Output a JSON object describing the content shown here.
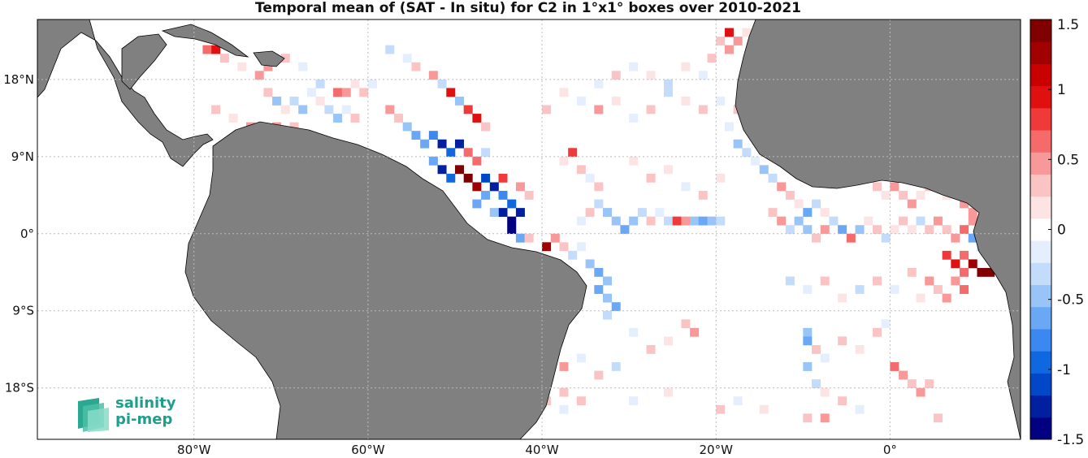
{
  "title": "Temporal mean of (SAT - In situ) for C2 in 1°x1° boxes over 2010-2021",
  "logo": {
    "line1": "salinity",
    "line2": "pi-mep",
    "color": "#1f9e8c"
  },
  "map": {
    "lon_range": [
      -98,
      15
    ],
    "lat_range": [
      -24,
      25
    ],
    "land_color": "#808080",
    "ocean_color": "#ffffff",
    "lon_ticks": [
      {
        "value": -80,
        "label": "80°W"
      },
      {
        "value": -60,
        "label": "60°W"
      },
      {
        "value": -40,
        "label": "40°W"
      },
      {
        "value": -20,
        "label": "20°W"
      },
      {
        "value": 0,
        "label": "0°"
      }
    ],
    "lat_ticks": [
      {
        "value": 18,
        "label": "18°N"
      },
      {
        "value": 9,
        "label": "9°N"
      },
      {
        "value": 0,
        "label": "0°"
      },
      {
        "value": -9,
        "label": "9°S"
      },
      {
        "value": -18,
        "label": "18°S"
      }
    ]
  },
  "colorbar": {
    "range": [
      -1.5,
      1.5
    ],
    "ticks": [
      {
        "value": 1.5,
        "label": "1.5"
      },
      {
        "value": 1,
        "label": "1"
      },
      {
        "value": 0.5,
        "label": "0.5"
      },
      {
        "value": 0,
        "label": "0"
      },
      {
        "value": -0.5,
        "label": "-0.5"
      },
      {
        "value": -1,
        "label": "-1"
      },
      {
        "value": -1.5,
        "label": "-1.5"
      }
    ],
    "colors": [
      "#000080",
      "#0020a0",
      "#0048c8",
      "#1068e0",
      "#3a88f0",
      "#6aa8f5",
      "#98c4f8",
      "#c4dcfb",
      "#e4eefd",
      "#ffffff",
      "#fde4e4",
      "#fbc4c4",
      "#f89898",
      "#f56a6a",
      "#f03a3a",
      "#e01010",
      "#c80000",
      "#a00000",
      "#800000"
    ]
  },
  "chart_data": {
    "type": "heatmap",
    "units": "°",
    "cells": [
      [
        -79,
        21,
        0.6
      ],
      [
        -78,
        21,
        0.9
      ],
      [
        -77,
        20,
        0.3
      ],
      [
        -75,
        19,
        0.2
      ],
      [
        -73,
        18,
        0.4
      ],
      [
        -72,
        19,
        0.5
      ],
      [
        -70,
        20,
        0.3
      ],
      [
        -68,
        19,
        -0.2
      ],
      [
        -66,
        17,
        -0.3
      ],
      [
        -64,
        16,
        0.6
      ],
      [
        -63,
        16,
        0.4
      ],
      [
        -62,
        17,
        0.2
      ],
      [
        -61,
        16,
        0.3
      ],
      [
        -60,
        17,
        -0.2
      ],
      [
        -72,
        16,
        0.3
      ],
      [
        -71,
        15,
        -0.4
      ],
      [
        -70,
        14,
        0.2
      ],
      [
        -69,
        15,
        -0.3
      ],
      [
        -68,
        14,
        -0.5
      ],
      [
        -67,
        16,
        -0.2
      ],
      [
        -66,
        15,
        0.2
      ],
      [
        -65,
        14,
        -0.3
      ],
      [
        -64,
        13,
        -0.4
      ],
      [
        -63,
        14,
        -0.2
      ],
      [
        -62,
        13,
        0.3
      ],
      [
        -78,
        14,
        0.3
      ],
      [
        -76,
        13,
        0.2
      ],
      [
        -74,
        12,
        0.4
      ],
      [
        -73,
        11,
        -0.3
      ],
      [
        -71,
        12,
        0.5
      ],
      [
        -70,
        11,
        -0.2
      ],
      [
        -69,
        12,
        0.3
      ],
      [
        -58,
        21,
        -0.3
      ],
      [
        -56,
        20,
        -0.2
      ],
      [
        -55,
        19,
        0.3
      ],
      [
        -53,
        18,
        0.4
      ],
      [
        -52,
        17,
        -0.3
      ],
      [
        -51,
        16,
        0.9
      ],
      [
        -50,
        15,
        -0.5
      ],
      [
        -49,
        14,
        0.8
      ],
      [
        -48,
        13,
        1.0
      ],
      [
        -47,
        12,
        0.3
      ],
      [
        -58,
        14,
        0.4
      ],
      [
        -57,
        13,
        0.3
      ],
      [
        -56,
        12,
        -0.4
      ],
      [
        -55,
        11,
        -0.6
      ],
      [
        -54,
        10,
        -0.7
      ],
      [
        -53,
        11,
        -0.8
      ],
      [
        -52,
        10,
        -1.3
      ],
      [
        -51,
        9,
        -0.9
      ],
      [
        -50,
        10,
        -1.2
      ],
      [
        -49,
        9,
        0.6
      ],
      [
        -48,
        8,
        0.7
      ],
      [
        -47,
        9,
        -0.3
      ],
      [
        -53,
        8,
        -0.6
      ],
      [
        -52,
        7,
        -1.2
      ],
      [
        -51,
        6,
        -1.0
      ],
      [
        -50,
        7,
        1.4
      ],
      [
        -49,
        6,
        1.5
      ],
      [
        -48,
        5,
        1.3
      ],
      [
        -47,
        6,
        -1.1
      ],
      [
        -46,
        5,
        -1.2
      ],
      [
        -45,
        4,
        -0.8
      ],
      [
        -44,
        3,
        -0.9
      ],
      [
        -45,
        2,
        -1.3
      ],
      [
        -44,
        1,
        -1.4
      ],
      [
        -43,
        2,
        -1.2
      ],
      [
        -44,
        0,
        -1.5
      ],
      [
        -43,
        -1,
        -0.6
      ],
      [
        -42,
        -1,
        0.3
      ],
      [
        -48,
        3,
        -0.6
      ],
      [
        -47,
        4,
        -0.7
      ],
      [
        -46,
        2,
        -0.5
      ],
      [
        -45,
        6,
        0.8
      ],
      [
        -43,
        5,
        0.4
      ],
      [
        -42,
        4,
        0.3
      ],
      [
        -40,
        -2,
        1.2
      ],
      [
        -39,
        -1,
        0.4
      ],
      [
        -38,
        -2,
        0.3
      ],
      [
        -37,
        -3,
        -0.3
      ],
      [
        -36,
        -2,
        -0.2
      ],
      [
        -35,
        -4,
        -0.4
      ],
      [
        -34,
        -5,
        -0.6
      ],
      [
        -33,
        -6,
        -0.5
      ],
      [
        -34,
        -7,
        -0.7
      ],
      [
        -33,
        -8,
        -0.4
      ],
      [
        -32,
        -9,
        -0.6
      ],
      [
        -33,
        -10,
        -0.3
      ],
      [
        -36,
        1,
        -0.2
      ],
      [
        -35,
        2,
        0.3
      ],
      [
        -34,
        3,
        -0.3
      ],
      [
        -33,
        2,
        -0.4
      ],
      [
        -32,
        1,
        -0.5
      ],
      [
        -31,
        0,
        -0.6
      ],
      [
        -30,
        1,
        -0.4
      ],
      [
        -29,
        2,
        -0.3
      ],
      [
        -28,
        1,
        0.3
      ],
      [
        -27,
        2,
        -0.2
      ],
      [
        -26,
        1,
        -0.3
      ],
      [
        -25,
        1,
        0.8
      ],
      [
        -24,
        1,
        0.5
      ],
      [
        -23,
        1,
        -0.4
      ],
      [
        -22,
        1,
        -0.6
      ],
      [
        -21,
        1,
        -0.5
      ],
      [
        -20,
        1,
        -0.3
      ],
      [
        -38,
        8,
        0.2
      ],
      [
        -37,
        9,
        0.8
      ],
      [
        -36,
        7,
        0.3
      ],
      [
        -35,
        6,
        -0.2
      ],
      [
        -34,
        5,
        0.3
      ],
      [
        -30,
        8,
        0.2
      ],
      [
        -28,
        6,
        0.3
      ],
      [
        -26,
        7,
        0.2
      ],
      [
        -24,
        5,
        -0.2
      ],
      [
        -22,
        4,
        0.3
      ],
      [
        -20,
        6,
        0.2
      ],
      [
        -40,
        14,
        0.3
      ],
      [
        -38,
        16,
        0.2
      ],
      [
        -36,
        15,
        -0.2
      ],
      [
        -34,
        14,
        0.4
      ],
      [
        -32,
        15,
        0.2
      ],
      [
        -30,
        13,
        -0.2
      ],
      [
        -28,
        14,
        0.3
      ],
      [
        -26,
        16,
        -0.3
      ],
      [
        -24,
        15,
        0.2
      ],
      [
        -22,
        14,
        0.3
      ],
      [
        -20,
        15,
        -0.2
      ],
      [
        -18,
        14,
        0.3
      ],
      [
        -16,
        13,
        -0.3
      ],
      [
        -20,
        22,
        0.3
      ],
      [
        -19,
        23,
        1.0
      ],
      [
        -18,
        22,
        0.4
      ],
      [
        -17,
        23,
        0.2
      ],
      [
        -19,
        21,
        0.5
      ],
      [
        -21,
        20,
        0.3
      ],
      [
        -22,
        18,
        -0.2
      ],
      [
        -24,
        19,
        0.2
      ],
      [
        -26,
        17,
        -0.3
      ],
      [
        -28,
        18,
        0.2
      ],
      [
        -30,
        19,
        -0.2
      ],
      [
        -32,
        18,
        0.3
      ],
      [
        -34,
        17,
        -0.2
      ],
      [
        -19,
        12,
        -0.2
      ],
      [
        -18,
        10,
        -0.4
      ],
      [
        -17,
        9,
        -0.3
      ],
      [
        -16,
        8,
        -0.2
      ],
      [
        -15,
        7,
        -0.5
      ],
      [
        -14,
        6,
        -0.3
      ],
      [
        -13,
        5,
        0.4
      ],
      [
        -12,
        4,
        0.3
      ],
      [
        -11,
        3,
        0.2
      ],
      [
        -10,
        2,
        -0.7
      ],
      [
        -9,
        3,
        -0.3
      ],
      [
        -8,
        2,
        0.2
      ],
      [
        -14,
        2,
        0.3
      ],
      [
        -13,
        1,
        0.4
      ],
      [
        -12,
        0,
        -0.3
      ],
      [
        -11,
        1,
        -0.4
      ],
      [
        -10,
        0,
        -0.5
      ],
      [
        -9,
        -1,
        0.3
      ],
      [
        -8,
        0,
        0.4
      ],
      [
        -7,
        1,
        -0.3
      ],
      [
        -6,
        0,
        -0.6
      ],
      [
        -5,
        -1,
        0.7
      ],
      [
        -4,
        0,
        -0.4
      ],
      [
        -3,
        1,
        0.2
      ],
      [
        -2,
        0,
        0.3
      ],
      [
        -1,
        -1,
        -0.3
      ],
      [
        0,
        0,
        0.2
      ],
      [
        1,
        1,
        0.3
      ],
      [
        2,
        0,
        0.2
      ],
      [
        3,
        1,
        -0.3
      ],
      [
        4,
        0,
        0.3
      ],
      [
        5,
        1,
        0.4
      ],
      [
        6,
        0,
        0.3
      ],
      [
        7,
        -1,
        0.5
      ],
      [
        8,
        0,
        0.6
      ],
      [
        9,
        1,
        0.4
      ],
      [
        10,
        0,
        0.7
      ],
      [
        9,
        -1,
        -0.6
      ],
      [
        10,
        -2,
        -0.4
      ],
      [
        -2,
        5,
        0.3
      ],
      [
        -1,
        4,
        0.2
      ],
      [
        0,
        5,
        0.5
      ],
      [
        1,
        4,
        0.3
      ],
      [
        2,
        3,
        0.4
      ],
      [
        3,
        4,
        0.2
      ],
      [
        4,
        5,
        0.3
      ],
      [
        6,
        4,
        0.2
      ],
      [
        8,
        3,
        0.4
      ],
      [
        9,
        2,
        0.5
      ],
      [
        6,
        -3,
        0.8
      ],
      [
        7,
        -4,
        0.9
      ],
      [
        8,
        -3,
        0.6
      ],
      [
        9,
        -4,
        1.3
      ],
      [
        10,
        -5,
        1.4
      ],
      [
        11,
        -5,
        1.5
      ],
      [
        8,
        -5,
        0.7
      ],
      [
        7,
        -6,
        0.5
      ],
      [
        8,
        -7,
        0.6
      ],
      [
        6,
        -8,
        0.4
      ],
      [
        5,
        -7,
        0.3
      ],
      [
        4,
        -6,
        0.4
      ],
      [
        -12,
        -6,
        -0.3
      ],
      [
        -10,
        -7,
        -0.2
      ],
      [
        -8,
        -6,
        0.3
      ],
      [
        -6,
        -8,
        0.2
      ],
      [
        -4,
        -7,
        -0.3
      ],
      [
        -2,
        -6,
        0.3
      ],
      [
        0,
        -7,
        -0.2
      ],
      [
        2,
        -5,
        0.3
      ],
      [
        3,
        -8,
        0.2
      ],
      [
        -10,
        -12,
        -0.5
      ],
      [
        -10,
        -13,
        -0.6
      ],
      [
        -9,
        -14,
        0.3
      ],
      [
        -8,
        -15,
        -0.2
      ],
      [
        -6,
        -13,
        0.3
      ],
      [
        -4,
        -14,
        0.2
      ],
      [
        -2,
        -12,
        0.3
      ],
      [
        -1,
        -11,
        -0.2
      ],
      [
        -24,
        -11,
        0.3
      ],
      [
        -23,
        -12,
        0.4
      ],
      [
        -26,
        -13,
        0.2
      ],
      [
        -28,
        -14,
        0.3
      ],
      [
        -30,
        -12,
        -0.2
      ],
      [
        -32,
        -16,
        -0.3
      ],
      [
        -34,
        -17,
        0.3
      ],
      [
        -36,
        -15,
        -0.2
      ],
      [
        -38,
        -16,
        0.4
      ],
      [
        -40,
        -18,
        -0.2
      ],
      [
        -38,
        -19,
        0.3
      ],
      [
        0,
        -16,
        0.6
      ],
      [
        1,
        -17,
        0.4
      ],
      [
        2,
        -18,
        0.3
      ],
      [
        3,
        -19,
        0.4
      ],
      [
        4,
        -18,
        0.3
      ],
      [
        -10,
        -16,
        -0.4
      ],
      [
        -9,
        -18,
        -0.3
      ],
      [
        -8,
        -19,
        0.2
      ],
      [
        -6,
        -20,
        0.3
      ],
      [
        -4,
        -21,
        -0.2
      ],
      [
        -10,
        -22,
        0.3
      ],
      [
        -8,
        -22,
        0.4
      ],
      [
        5,
        -22,
        0.3
      ],
      [
        -42,
        -22,
        1.0
      ],
      [
        -43,
        -22,
        1.2
      ],
      [
        -41,
        -21,
        0.6
      ],
      [
        -40,
        -20,
        0.3
      ],
      [
        -38,
        -21,
        -0.2
      ],
      [
        -36,
        -20,
        0.3
      ],
      [
        -30,
        -20,
        -0.2
      ],
      [
        -26,
        -19,
        0.2
      ],
      [
        -20,
        -21,
        0.3
      ],
      [
        -18,
        -20,
        -0.2
      ],
      [
        -15,
        -21,
        0.2
      ]
    ]
  }
}
